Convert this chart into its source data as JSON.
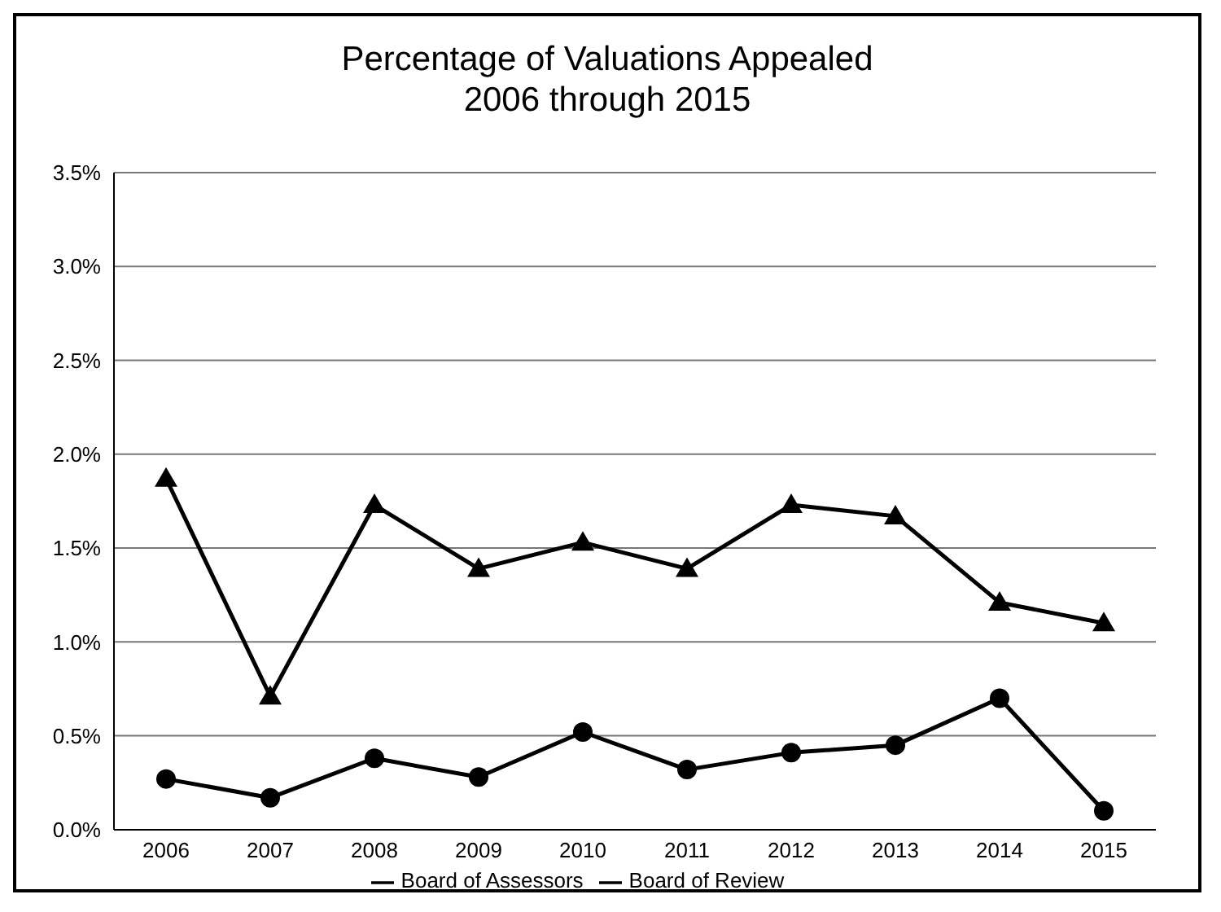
{
  "chart_data": {
    "type": "line",
    "title": "Percentage of Valuations Appealed\n2006 through 2015",
    "categories": [
      "2006",
      "2007",
      "2008",
      "2009",
      "2010",
      "2011",
      "2012",
      "2013",
      "2014",
      "2015"
    ],
    "series": [
      {
        "name": "Board of Assessors",
        "color": "#000000",
        "marker": "triangle",
        "values": [
          1.87,
          0.71,
          1.73,
          1.39,
          1.53,
          1.39,
          1.73,
          1.67,
          1.21,
          1.1
        ]
      },
      {
        "name": "Board of Review",
        "color": "#000000",
        "marker": "circle",
        "values": [
          0.27,
          0.17,
          0.38,
          0.28,
          0.52,
          0.32,
          0.41,
          0.45,
          0.7,
          0.1
        ]
      }
    ],
    "ylim": [
      0,
      3.5
    ],
    "yticks": [
      {
        "value": 0,
        "label": "0.0%"
      },
      {
        "value": 0.5,
        "label": "0.5%"
      },
      {
        "value": 1,
        "label": "1.0%"
      },
      {
        "value": 1.5,
        "label": "1.5%"
      },
      {
        "value": 2,
        "label": "2.0%"
      },
      {
        "value": 2.5,
        "label": "2.5%"
      },
      {
        "value": 3,
        "label": "3.0%"
      },
      {
        "value": 3.5,
        "label": "3.5%"
      }
    ],
    "grid": "y",
    "legend": "bottom",
    "line_style": "solid"
  }
}
